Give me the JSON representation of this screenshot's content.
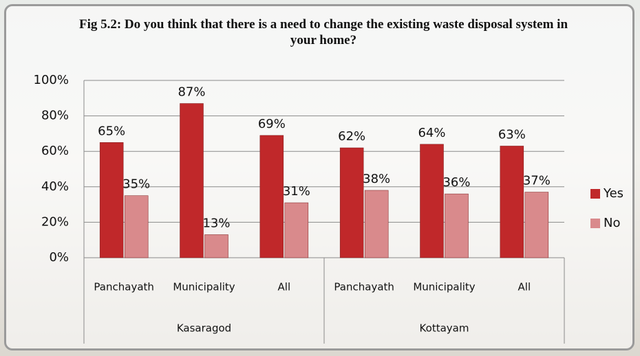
{
  "chart_data": {
    "type": "bar",
    "title": "Fig 5.2: Do you think that there is a need to change the existing waste disposal system in your home?",
    "groups": [
      {
        "name": "Kasaragod",
        "categories": [
          "Panchayath",
          "Municipality",
          "All"
        ]
      },
      {
        "name": "Kottayam",
        "categories": [
          "Panchayath",
          "Municipality",
          "All"
        ]
      }
    ],
    "series": [
      {
        "name": "Yes",
        "color": "#c0282a",
        "values": [
          65,
          87,
          69,
          62,
          64,
          63
        ],
        "value_labels": [
          "65%",
          "87%",
          "69%",
          "62%",
          "64%",
          "63%"
        ]
      },
      {
        "name": "No",
        "color": "#d98a8c",
        "values": [
          35,
          13,
          31,
          38,
          36,
          37
        ],
        "value_labels": [
          "35%",
          "13%",
          "31%",
          "38%",
          "36%",
          "37%"
        ]
      }
    ],
    "ylim": [
      0,
      100
    ],
    "yticks": [
      {
        "value": 0,
        "label": "0%"
      },
      {
        "value": 20,
        "label": "20%"
      },
      {
        "value": 40,
        "label": "40%"
      },
      {
        "value": 60,
        "label": "60%"
      },
      {
        "value": 80,
        "label": "80%"
      },
      {
        "value": 100,
        "label": "100%"
      }
    ],
    "grid": true,
    "legend": "right"
  }
}
